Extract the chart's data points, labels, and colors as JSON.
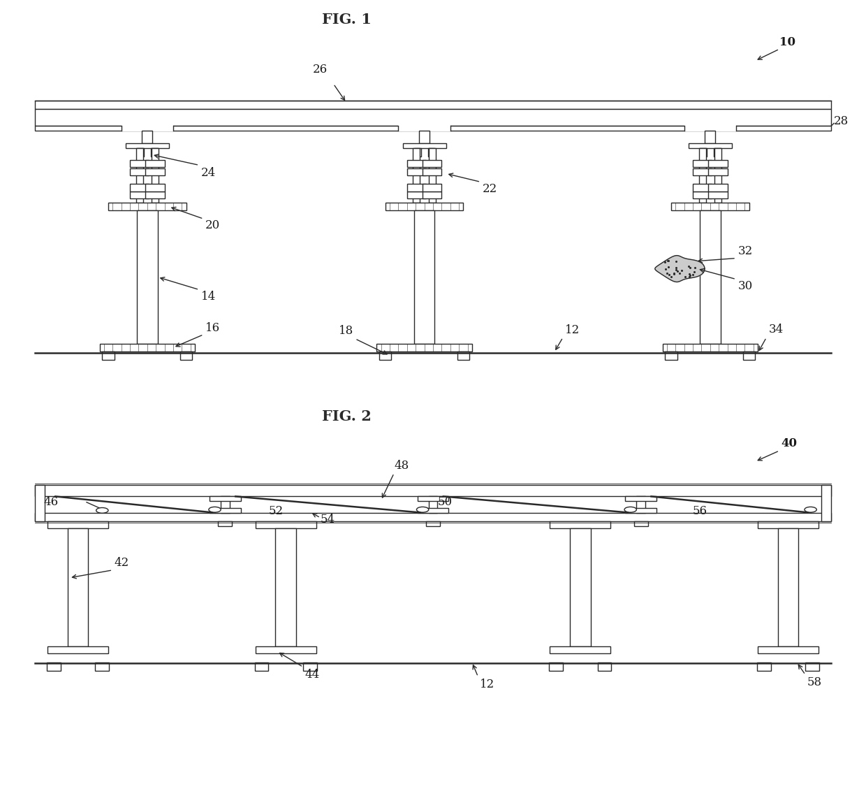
{
  "fig_title1": "FIG. 1",
  "fig_title2": "FIG. 2",
  "background_color": "#ffffff",
  "line_color": "#2a2a2a",
  "label_color": "#1a1a1a",
  "lw": 1.0,
  "tlw": 1.8,
  "fs": 12,
  "tfs": 15
}
